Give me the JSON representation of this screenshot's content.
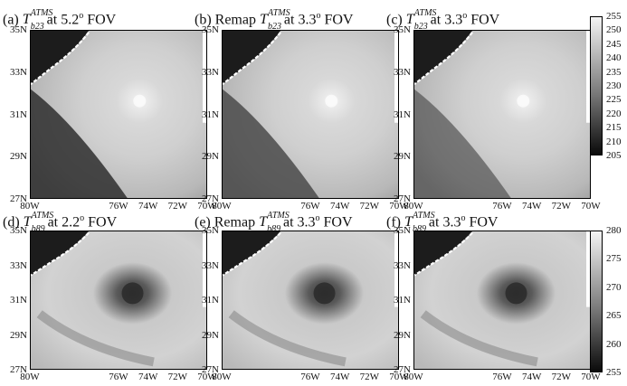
{
  "row_top": {
    "panels": [
      {
        "prefix": "(a)",
        "sym": "T",
        "sup": "ATMS",
        "sub": "b23",
        "suffix": "at 5.2",
        "deg": "o",
        "tail": "FOV"
      },
      {
        "prefix": "(b) Remap",
        "sym": "T",
        "sup": "ATMS",
        "sub": "b23",
        "suffix": "at 3.3",
        "deg": "o",
        "tail": "FOV"
      },
      {
        "prefix": "(c)",
        "sym": "T",
        "sup": "ATMS",
        "sub": "b23",
        "suffix": "at 3.3",
        "deg": "o",
        "tail": "FOV"
      }
    ],
    "colorbar_ticks": [
      "255",
      "250",
      "245",
      "240",
      "235",
      "230",
      "225",
      "220",
      "215",
      "210",
      "205"
    ]
  },
  "row_bottom": {
    "panels": [
      {
        "prefix": "(d)",
        "sym": "T",
        "sup": "ATMS",
        "sub": "b89",
        "suffix": "at 2.2",
        "deg": "o",
        "tail": "FOV"
      },
      {
        "prefix": "(e) Remap",
        "sym": "T",
        "sup": "ATMS",
        "sub": "b89",
        "suffix": "at 3.3",
        "deg": "o",
        "tail": "FOV"
      },
      {
        "prefix": "(f)",
        "sym": "T",
        "sup": "ATMS",
        "sub": "b89",
        "suffix": "at 3.3",
        "deg": "o",
        "tail": "FOV"
      }
    ],
    "colorbar_ticks": [
      "280",
      "275",
      "270",
      "265",
      "260",
      "255"
    ]
  },
  "lat_ticks": [
    "35N",
    "33N",
    "31N",
    "29N",
    "27N"
  ],
  "lon_ticks": [
    "80W",
    "76W",
    "74W",
    "72W",
    "70W"
  ]
}
